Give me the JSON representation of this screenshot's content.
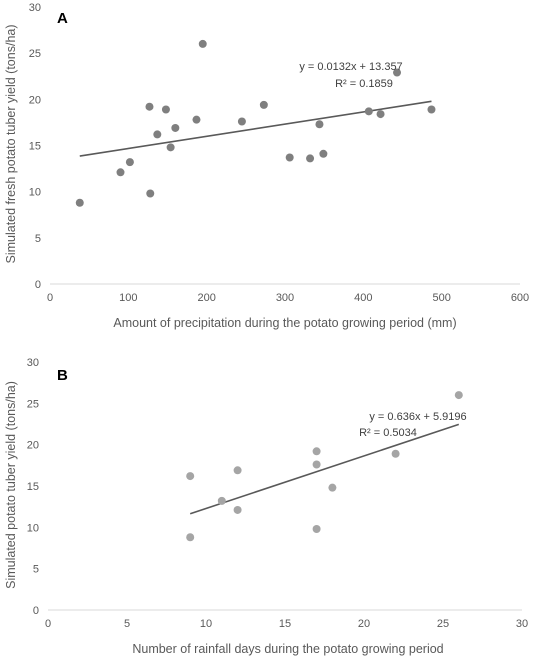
{
  "chart_data": [
    {
      "type": "scatter",
      "panel_label": "A",
      "xlabel": "Amount of precipitation during the potato growing period (mm)",
      "ylabel": "Simulated fresh potato tuber yield (tons/ha)",
      "xlim": [
        0,
        600
      ],
      "ylim": [
        0,
        30
      ],
      "xticks": [
        "0",
        "100",
        "200",
        "300",
        "400",
        "500",
        "600"
      ],
      "yticks": [
        "0",
        "5",
        "10",
        "15",
        "20",
        "25",
        "30"
      ],
      "grid": false,
      "marker_color": "#7f7f7f",
      "trendline": {
        "slope": 0.0132,
        "intercept": 13.357,
        "x_range": [
          38,
          487
        ],
        "equation": "y = 0.0132x + 13.357",
        "r2": "R² = 0.1859"
      },
      "points": [
        {
          "x": 38,
          "y": 8.8
        },
        {
          "x": 90,
          "y": 12.1
        },
        {
          "x": 102,
          "y": 13.2
        },
        {
          "x": 127,
          "y": 19.2
        },
        {
          "x": 128,
          "y": 9.8
        },
        {
          "x": 137,
          "y": 16.2
        },
        {
          "x": 148,
          "y": 18.9
        },
        {
          "x": 154,
          "y": 14.8
        },
        {
          "x": 160,
          "y": 16.9
        },
        {
          "x": 187,
          "y": 17.8
        },
        {
          "x": 195,
          "y": 26.0
        },
        {
          "x": 245,
          "y": 17.6
        },
        {
          "x": 273,
          "y": 19.4
        },
        {
          "x": 306,
          "y": 13.7
        },
        {
          "x": 332,
          "y": 13.6
        },
        {
          "x": 344,
          "y": 17.3
        },
        {
          "x": 349,
          "y": 14.1
        },
        {
          "x": 407,
          "y": 18.7
        },
        {
          "x": 422,
          "y": 18.4
        },
        {
          "x": 443,
          "y": 22.9
        },
        {
          "x": 487,
          "y": 18.9
        }
      ]
    },
    {
      "type": "scatter",
      "panel_label": "B",
      "xlabel": "Number of rainfall days during the potato growing period",
      "ylabel": "Simulated potato tuber yield (tons/ha)",
      "xlim": [
        0,
        30
      ],
      "ylim": [
        0,
        30
      ],
      "xticks": [
        "0",
        "5",
        "10",
        "15",
        "20",
        "25",
        "30"
      ],
      "yticks": [
        "0",
        "5",
        "10",
        "15",
        "20",
        "25",
        "30"
      ],
      "grid": false,
      "marker_color": "#a5a5a5",
      "trendline": {
        "slope": 0.636,
        "intercept": 5.9196,
        "x_range": [
          9,
          26
        ],
        "equation": "y = 0.636x + 5.9196",
        "r2": "R² = 0.5034"
      },
      "points": [
        {
          "x": 9,
          "y": 8.8
        },
        {
          "x": 9,
          "y": 16.2
        },
        {
          "x": 11,
          "y": 13.2
        },
        {
          "x": 12,
          "y": 12.1
        },
        {
          "x": 12,
          "y": 16.9
        },
        {
          "x": 17,
          "y": 9.8
        },
        {
          "x": 17,
          "y": 17.6
        },
        {
          "x": 17,
          "y": 19.2
        },
        {
          "x": 18,
          "y": 14.8
        },
        {
          "x": 22,
          "y": 18.9
        },
        {
          "x": 26,
          "y": 26.0
        }
      ]
    }
  ]
}
